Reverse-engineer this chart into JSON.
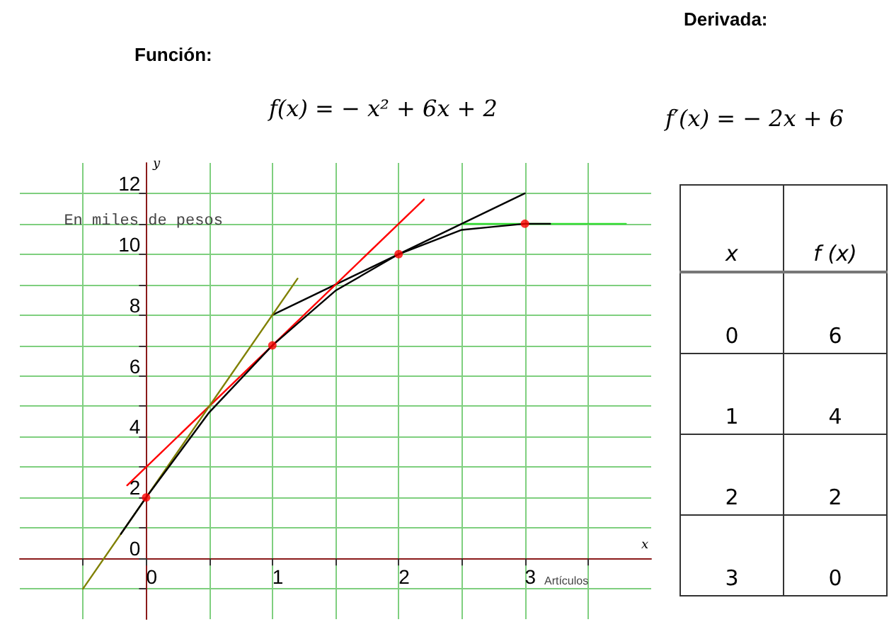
{
  "chart_data": {
    "type": "line",
    "title": "Función:",
    "subtitle": "f(x) = − x² + 6x + 2",
    "xlabel": "Artículos",
    "ylabel": "En miles de pesos",
    "annotations": [
      "Derivada:",
      "f′(x) = − 2x + 6",
      "y",
      "x",
      "x",
      "f (x)",
      "0",
      "6",
      "1",
      "4",
      "2",
      "2",
      "3",
      "0"
    ],
    "xlim": [
      -1,
      4
    ],
    "ylim": [
      -2,
      13
    ],
    "xticks": [
      {
        "value": -0.5,
        "label": null
      },
      0,
      {
        "value": 0.5,
        "label": null
      },
      1,
      {
        "value": 1.5,
        "label": null
      },
      2,
      {
        "value": 2.5,
        "label": null
      },
      3,
      {
        "value": 3.5,
        "label": null
      }
    ],
    "yticks": [
      {
        "value": -1,
        "label": null
      },
      0,
      {
        "value": 1,
        "label": null
      },
      2,
      {
        "value": 3,
        "label": null
      },
      4,
      {
        "value": 5,
        "label": null
      },
      6,
      {
        "value": 7,
        "label": null
      },
      8,
      {
        "value": 9,
        "label": null
      },
      10,
      {
        "value": 11,
        "label": null
      },
      12
    ],
    "grid": true,
    "marker": "none",
    "line_style": "solid",
    "series": [
      {
        "color": "#000000",
        "x": [
          -0.2,
          0,
          0.25,
          0.5,
          0.75,
          1,
          1.25,
          1.5,
          1.75,
          2,
          2.25,
          2.5,
          2.75,
          3,
          3.2
        ],
        "values": [
          0.8,
          2,
          3.4,
          4.8,
          5.9,
          7,
          7.9,
          8.8,
          9.4,
          10,
          10.4,
          10.8,
          10.9,
          11,
          11
        ]
      },
      {
        "type": "line",
        "color": "#808000",
        "x": [
          -0.5,
          1.2
        ],
        "values": [
          -1,
          9.2
        ]
      },
      {
        "type": "line",
        "color": "#ff0000",
        "x": [
          -0.15,
          2.2
        ],
        "values": [
          2.4,
          11.8
        ]
      },
      {
        "type": "line",
        "color": "#000000",
        "x": [
          1,
          3
        ],
        "values": [
          8,
          12
        ]
      },
      {
        "type": "line",
        "color": "#33dd33",
        "x": [
          2.5,
          3.8
        ],
        "values": [
          11,
          11
        ]
      },
      {
        "type": "scatter",
        "color": "#ff0000",
        "marker": "circle",
        "x": [
          0,
          1,
          2,
          3
        ],
        "values": [
          2,
          7,
          10,
          11
        ]
      }
    ]
  }
}
